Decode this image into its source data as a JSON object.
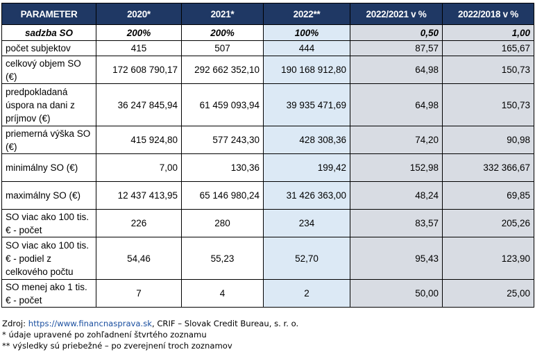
{
  "table": {
    "headers": [
      "PARAMETER",
      "2020*",
      "2021*",
      "2022**",
      "2022/2021 v %",
      "2022/2018 v %"
    ],
    "rows": [
      {
        "label": "sadzba SO",
        "values": [
          "200%",
          "200%",
          "100%",
          "0,50",
          "1,00"
        ]
      },
      {
        "label": "počet subjektov",
        "values": [
          "415",
          "507",
          "444",
          "87,57",
          "165,67"
        ]
      },
      {
        "label": "celkový objem SO (€)",
        "values": [
          "172 608 790,17",
          "292 662 352,10",
          "190 168 912,80",
          "64,98",
          "150,73"
        ]
      },
      {
        "label": "predpokladaná úspora na dani z príjmov (€)",
        "values": [
          "36 247 845,94",
          "61 459 093,94",
          "39 935 471,69",
          "64,98",
          "150,73"
        ]
      },
      {
        "label": "priemerná výška SO (€)",
        "values": [
          "415 924,80",
          "577 243,30",
          "428 308,36",
          "74,20",
          "90,98"
        ]
      },
      {
        "label": "minimálny SO (€)",
        "values": [
          "7,00",
          "130,36",
          "199,42",
          "152,98",
          "332 366,67"
        ]
      },
      {
        "label": "maximálny SO (€)",
        "values": [
          "12 437 413,95",
          "65 146 980,24",
          "31 426 363,00",
          "48,24",
          "69,85"
        ]
      },
      {
        "label": "SO viac ako 100 tis. € - počet",
        "values": [
          "226",
          "280",
          "234",
          "83,57",
          "205,26"
        ]
      },
      {
        "label": "SO viac ako 100 tis. € - podiel z celkového počtu",
        "values": [
          "54,46",
          "55,23",
          "52,70",
          "95,43",
          "123,90"
        ]
      },
      {
        "label": "SO menej ako 1 tis. € - počet",
        "values": [
          "7",
          "4",
          "2",
          "50,00",
          "25,00"
        ]
      }
    ]
  },
  "notes": {
    "source_prefix": "Zdroj: ",
    "source_link": "https://www.financnasprava.sk",
    "source_suffix": ", CRIF – Slovak Credit Bureau, s. r. o.",
    "note1": "* údaje upravené po zohľadnení štvrtého zoznamu",
    "note2": "** výsledky sú priebežné – po zverejnení troch zoznamov"
  },
  "colors": {
    "header_bg": "#1f3864",
    "col_2022_bg": "#dce9f5",
    "col_compare_bg": "#d8dce3",
    "link": "#1a4fa0"
  }
}
